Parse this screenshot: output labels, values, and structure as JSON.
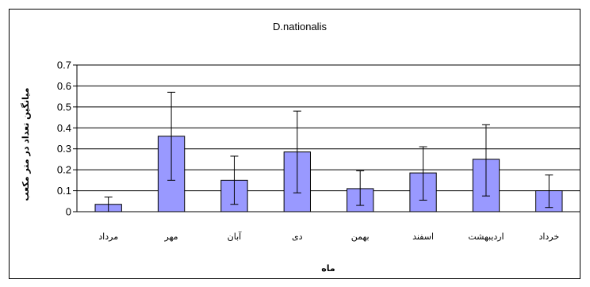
{
  "chart_data": {
    "type": "bar",
    "title": "D.nationalis",
    "xlabel": "ماه",
    "ylabel": "میانگین تعداد در متر مکعب",
    "categories": [
      "مرداد",
      "مهر",
      "آبان",
      "دی",
      "بهمن",
      "اسفند",
      "اردیبهشت",
      "خرداد"
    ],
    "values": [
      0.035,
      0.36,
      0.15,
      0.285,
      0.11,
      0.185,
      0.25,
      0.1
    ],
    "error_low": [
      0.0,
      0.15,
      0.035,
      0.09,
      0.03,
      0.055,
      0.075,
      0.02
    ],
    "error_high": [
      0.07,
      0.57,
      0.265,
      0.48,
      0.195,
      0.31,
      0.415,
      0.175
    ],
    "ylim": [
      0,
      0.7
    ],
    "yticks": [
      "0",
      "0.1",
      "0.2",
      "0.3",
      "0.4",
      "0.5",
      "0.6",
      "0.7"
    ],
    "grid": true,
    "bar_color": "#9999ff",
    "bar_edge_color": "#000000",
    "grid_color": "#000000"
  }
}
